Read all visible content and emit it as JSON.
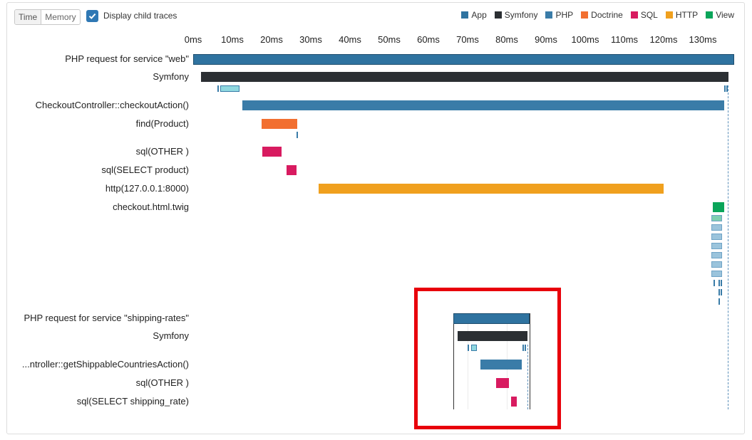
{
  "toolbar": {
    "time_label": "Time",
    "memory_label": "Memory",
    "display_child_traces_label": "Display child traces",
    "display_child_traces_checked": true
  },
  "legend": [
    {
      "label": "App",
      "color": "#2f73a0"
    },
    {
      "label": "Symfony",
      "color": "#2b2f33"
    },
    {
      "label": "PHP",
      "color": "#3a7ca8"
    },
    {
      "label": "Doctrine",
      "color": "#f26f30"
    },
    {
      "label": "SQL",
      "color": "#d81b60"
    },
    {
      "label": "HTTP",
      "color": "#f0a01e"
    },
    {
      "label": "View",
      "color": "#0aa55a"
    }
  ],
  "timeline": {
    "ticks": [
      "0ms",
      "10ms",
      "20ms",
      "30ms",
      "40ms",
      "50ms",
      "60ms",
      "70ms",
      "80ms",
      "90ms",
      "100ms",
      "110ms",
      "120ms",
      "130ms"
    ],
    "total_ms": 138
  },
  "main_trace": {
    "spans": [
      {
        "label": "PHP request for service \"web\"",
        "start_ms": 0,
        "end_ms": 138,
        "type": "App"
      },
      {
        "label": "Symfony",
        "start_ms": 2,
        "end_ms": 136.5,
        "type": "Symfony"
      },
      {
        "label": "CheckoutController::checkoutAction()",
        "start_ms": 12.5,
        "end_ms": 135.5,
        "type": "PHP"
      },
      {
        "label": "find(Product)",
        "start_ms": 17.5,
        "end_ms": 26.5,
        "type": "Doctrine"
      },
      {
        "label": "sql(OTHER )",
        "start_ms": 17.7,
        "end_ms": 22.6,
        "type": "SQL"
      },
      {
        "label": "sql(SELECT product)",
        "start_ms": 23.8,
        "end_ms": 26.3,
        "type": "SQL"
      },
      {
        "label": "http(127.0.0.1:8000)",
        "start_ms": 32,
        "end_ms": 120,
        "type": "HTTP"
      },
      {
        "label": "checkout.html.twig",
        "start_ms": 132.5,
        "end_ms": 135.5,
        "type": "View"
      }
    ]
  },
  "child_trace": {
    "spans": [
      {
        "label": "PHP request for service \"shipping-rates\"",
        "start_ms": 66.3,
        "end_ms": 85.8,
        "type": "App"
      },
      {
        "label": "Symfony",
        "start_ms": 67.5,
        "end_ms": 85.3,
        "type": "Symfony"
      },
      {
        "label": "...ntroller::getShippableCountriesAction()",
        "start_ms": 73.3,
        "end_ms": 83.8,
        "type": "PHP"
      },
      {
        "label": "sql(OTHER )",
        "start_ms": 77.2,
        "end_ms": 80.6,
        "type": "SQL"
      },
      {
        "label": "sql(SELECT shipping_rate)",
        "start_ms": 81.0,
        "end_ms": 82.5,
        "type": "SQL"
      }
    ]
  }
}
